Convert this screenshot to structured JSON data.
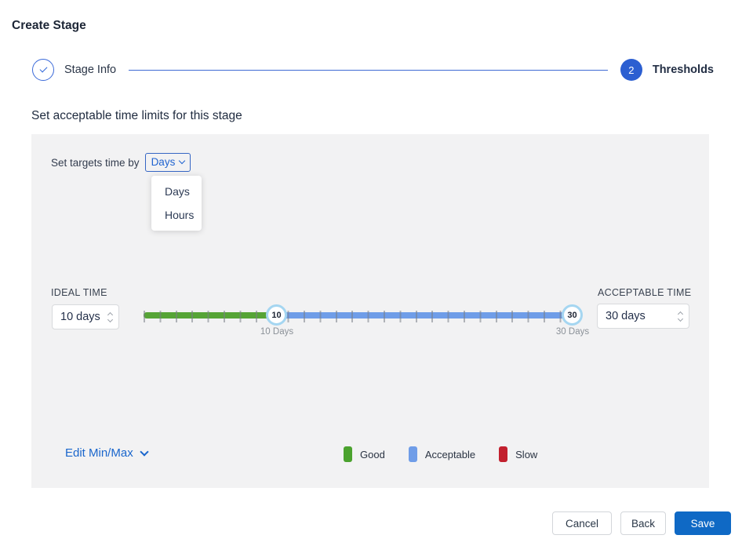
{
  "page": {
    "title": "Create Stage"
  },
  "stepper": {
    "steps": [
      {
        "label": "Stage Info",
        "state": "completed"
      },
      {
        "label": "Thresholds",
        "state": "active",
        "number": "2"
      }
    ]
  },
  "section": {
    "heading": "Set acceptable time limits for this stage"
  },
  "panel": {
    "target_time_label": "Set targets time by",
    "target_time_value": "Days",
    "dropdown_options": [
      "Days",
      "Hours"
    ],
    "ideal": {
      "label": "IDEAL TIME",
      "value": "10 days"
    },
    "acceptable": {
      "label": "ACCEPTABLE TIME",
      "value": "30 days"
    },
    "slider": {
      "min_handle_value": "10",
      "max_handle_value": "30",
      "min_handle_label": "10 Days",
      "max_handle_label": "30 Days",
      "good_color": "#56a436",
      "acceptable_color": "#6f9de8"
    },
    "edit_minmax_label": "Edit Min/Max",
    "legend": [
      {
        "label": "Good",
        "color": "#4ba22e"
      },
      {
        "label": "Acceptable",
        "color": "#6f9de8"
      },
      {
        "label": "Slow",
        "color": "#c2202e"
      }
    ]
  },
  "footer": {
    "cancel_label": "Cancel",
    "back_label": "Back",
    "save_label": "Save"
  },
  "appearance": {
    "accent_blue": "#2c5fd1",
    "link_blue": "#1a66cc",
    "save_button_blue": "#0f69c5",
    "panel_background": "#f2f2f3"
  }
}
